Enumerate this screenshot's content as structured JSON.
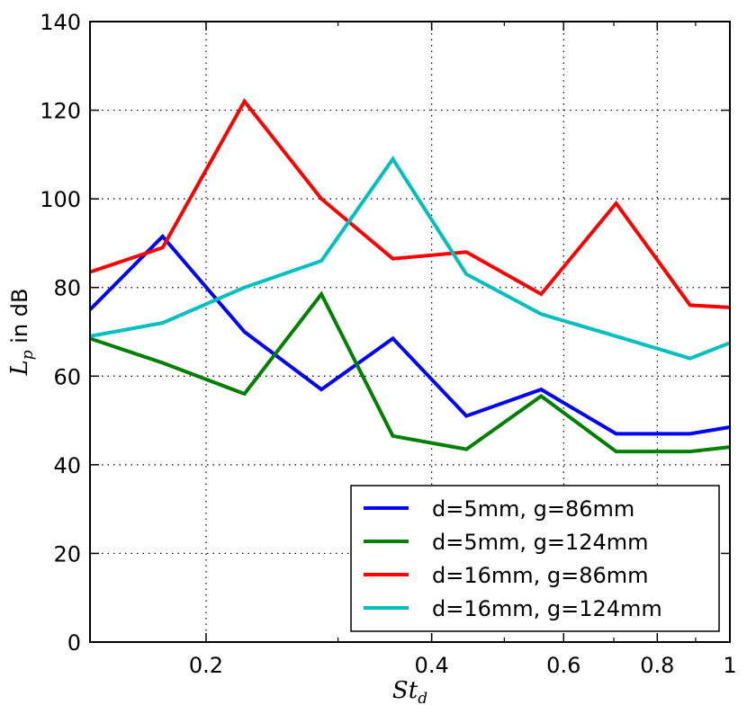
{
  "chart_data": {
    "type": "line",
    "xscale": "log",
    "xlim": [
      0.14,
      1.0
    ],
    "ylim": [
      0,
      140
    ],
    "grid": true,
    "legend_position": "lower-right",
    "xlabel": {
      "main": "St",
      "sub": "d"
    },
    "ylabel": {
      "main": "L",
      "sub": "p",
      "rest": " in dB"
    },
    "x_ticks": [
      {
        "value": 0.2,
        "label": "0.2"
      },
      {
        "value": 0.4,
        "label": "0.4"
      },
      {
        "value": 0.6,
        "label": "0.6"
      },
      {
        "value": 0.8,
        "label": "0.8"
      },
      {
        "value": 1.0,
        "label": "1"
      }
    ],
    "y_ticks": [
      {
        "value": 0,
        "label": "0"
      },
      {
        "value": 20,
        "label": "20"
      },
      {
        "value": 40,
        "label": "40"
      },
      {
        "value": 60,
        "label": "60"
      },
      {
        "value": 80,
        "label": "80"
      },
      {
        "value": 100,
        "label": "100"
      },
      {
        "value": 120,
        "label": "120"
      },
      {
        "value": 140,
        "label": "140"
      }
    ],
    "x": [
      0.14,
      0.175,
      0.225,
      0.285,
      0.355,
      0.445,
      0.56,
      0.705,
      0.885,
      1.0
    ],
    "series": [
      {
        "name": "d=5mm, g=86mm",
        "color": "#0000ff",
        "values": [
          75,
          91.5,
          70,
          57,
          68.5,
          51,
          57,
          47,
          47,
          48.5
        ]
      },
      {
        "name": "d=5mm, g=124mm",
        "color": "#008000",
        "values": [
          68.5,
          63,
          56,
          78.5,
          46.5,
          43.5,
          55.5,
          43,
          43,
          44
        ]
      },
      {
        "name": "d=16mm, g=86mm",
        "color": "#ff0000",
        "values": [
          83.5,
          89,
          122,
          100,
          86.5,
          88,
          78.5,
          99,
          76,
          75.5
        ]
      },
      {
        "name": "d=16mm, g=124mm",
        "color": "#00bfbf",
        "values": [
          69,
          72,
          80,
          86,
          109,
          83,
          74,
          69,
          64,
          67.5
        ]
      }
    ]
  }
}
